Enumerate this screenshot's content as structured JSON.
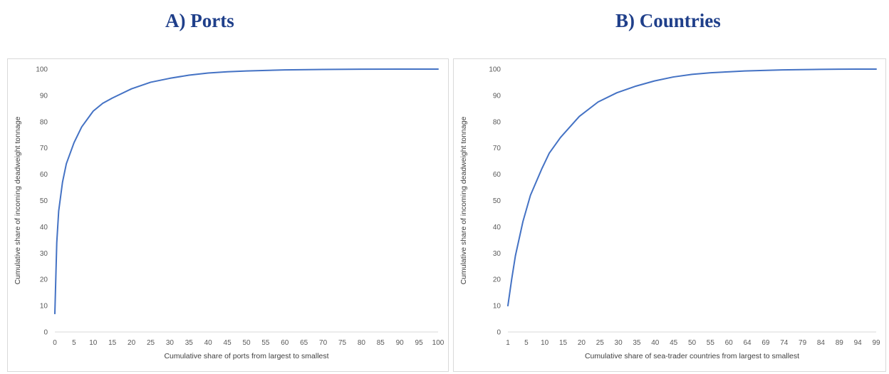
{
  "panels": {
    "a_title": "A) Ports",
    "b_title": "B) Countries"
  },
  "chart_data": [
    {
      "type": "line",
      "title": "A) Ports",
      "xlabel": "Cumulative share of ports from largest to smallest",
      "ylabel": "Cumulative share of incoming deadweight tonnage",
      "x_ticks": [
        "0",
        "5",
        "10",
        "15",
        "20",
        "25",
        "30",
        "35",
        "40",
        "45",
        "50",
        "55",
        "60",
        "65",
        "70",
        "75",
        "80",
        "85",
        "90",
        "95",
        "100"
      ],
      "y_ticks": [
        "0",
        "10",
        "20",
        "30",
        "40",
        "50",
        "60",
        "70",
        "80",
        "90",
        "100"
      ],
      "ylim": [
        0,
        100
      ],
      "grid": false,
      "line_color": "#4472c4",
      "series": [
        {
          "x": [
            0,
            0.5,
            1,
            2,
            3,
            5,
            7,
            10,
            12.5,
            15,
            20,
            25,
            30,
            35,
            40,
            45,
            50,
            55,
            60,
            70,
            80,
            90,
            100
          ],
          "y": [
            7,
            34,
            46,
            57,
            64,
            72,
            78,
            84,
            87,
            89,
            92.5,
            95,
            96.5,
            97.7,
            98.5,
            99,
            99.3,
            99.5,
            99.7,
            99.85,
            99.95,
            100,
            100
          ]
        }
      ]
    },
    {
      "type": "line",
      "title": "B) Countries",
      "xlabel": "Cumulative share of sea-trader countries from largest to smallest",
      "ylabel": "Cumulative share of incoming deadweight tonnage",
      "x_ticks": [
        "1",
        "5",
        "10",
        "15",
        "20",
        "25",
        "30",
        "35",
        "40",
        "45",
        "50",
        "55",
        "60",
        "64",
        "69",
        "74",
        "79",
        "84",
        "89",
        "94",
        "99"
      ],
      "y_ticks": [
        "0",
        "10",
        "20",
        "30",
        "40",
        "50",
        "60",
        "70",
        "80",
        "90",
        "100"
      ],
      "ylim": [
        0,
        100
      ],
      "grid": false,
      "line_color": "#4472c4",
      "series": [
        {
          "x": [
            1,
            2,
            3,
            5,
            7,
            10,
            12,
            15,
            20,
            25,
            30,
            35,
            40,
            45,
            50,
            55,
            60,
            64,
            69,
            74,
            79,
            84,
            89,
            94,
            99
          ],
          "y": [
            10,
            20,
            29,
            42,
            52,
            62,
            68,
            74,
            82,
            87.5,
            91,
            93.5,
            95.5,
            97,
            98,
            98.6,
            99,
            99.3,
            99.5,
            99.7,
            99.8,
            99.9,
            99.95,
            100,
            100
          ]
        }
      ]
    }
  ]
}
